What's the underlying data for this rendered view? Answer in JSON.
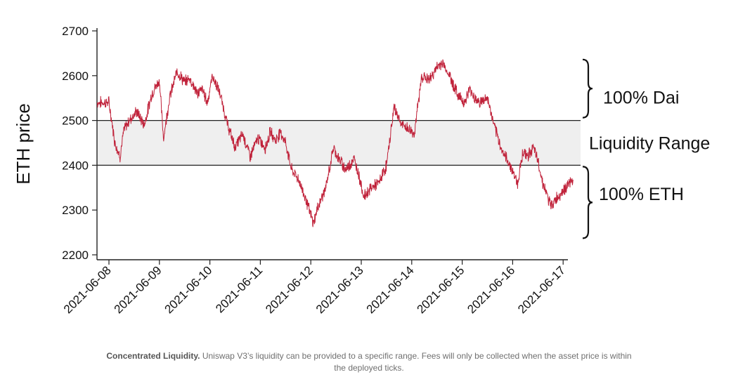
{
  "chart_data": {
    "type": "line",
    "title": "",
    "ylabel": "ETH price",
    "xlabel": "",
    "ylim": [
      2200,
      2700
    ],
    "yticks": [
      2200,
      2300,
      2400,
      2500,
      2600,
      2700
    ],
    "x_tick_labels": [
      "2021-06-08",
      "2021-06-09",
      "2021-06-10",
      "2021-06-11",
      "2021-06-12",
      "2021-06-13",
      "2021-06-14",
      "2021-06-15",
      "2021-06-16",
      "2021-06-17"
    ],
    "series": [
      {
        "name": "ETH price",
        "color": "#c0223a",
        "x_days": [
          0,
          0.12,
          0.22,
          0.3,
          0.4,
          0.55,
          0.7,
          0.85,
          1.0,
          1.08,
          1.2,
          1.35,
          1.5,
          1.6,
          1.75,
          1.85,
          1.95,
          2.05,
          2.2,
          2.35,
          2.5,
          2.65,
          2.8,
          2.95,
          3.1,
          3.2,
          3.3,
          3.4,
          3.5,
          3.62,
          3.75,
          3.9,
          4.05,
          4.15,
          4.3,
          4.45,
          4.55,
          4.7,
          4.85,
          4.95,
          5.05,
          5.2,
          5.35,
          5.5,
          5.65,
          5.8,
          5.95,
          6.05,
          6.2,
          6.35,
          6.45,
          6.6,
          6.75,
          6.9,
          7.05,
          7.15,
          7.25,
          7.35,
          7.5,
          7.65,
          7.8,
          7.95,
          8.1,
          8.2,
          8.3,
          8.4,
          8.5,
          8.6,
          8.75,
          8.9,
          9.05,
          9.2
        ],
        "values": [
          2540,
          2450,
          2420,
          2480,
          2500,
          2520,
          2490,
          2560,
          2590,
          2460,
          2550,
          2610,
          2585,
          2595,
          2560,
          2570,
          2540,
          2600,
          2560,
          2490,
          2440,
          2470,
          2420,
          2460,
          2440,
          2475,
          2455,
          2475,
          2450,
          2390,
          2370,
          2325,
          2270,
          2310,
          2350,
          2440,
          2415,
          2390,
          2415,
          2380,
          2330,
          2350,
          2360,
          2400,
          2530,
          2490,
          2480,
          2470,
          2600,
          2590,
          2610,
          2630,
          2600,
          2560,
          2540,
          2570,
          2550,
          2540,
          2550,
          2480,
          2430,
          2400,
          2360,
          2430,
          2420,
          2440,
          2410,
          2360,
          2310,
          2330,
          2350,
          2370
        ]
      }
    ],
    "range_band": {
      "low": 2400,
      "high": 2500,
      "fill": "#efefef"
    },
    "annotations": [
      {
        "label": "100% Dai",
        "from": 2500,
        "to": 2600
      },
      {
        "label": "Liquidity Range",
        "from": 2400,
        "to": 2500
      },
      {
        "label": "100% ETH",
        "from": 2270,
        "to": 2400
      }
    ]
  },
  "caption": {
    "bold": "Concentrated Liquidity.",
    "text": " Uniswap V3’s liquidity can be provided to a specific range. Fees will only be collected when the asset price is within the deployed ticks."
  }
}
